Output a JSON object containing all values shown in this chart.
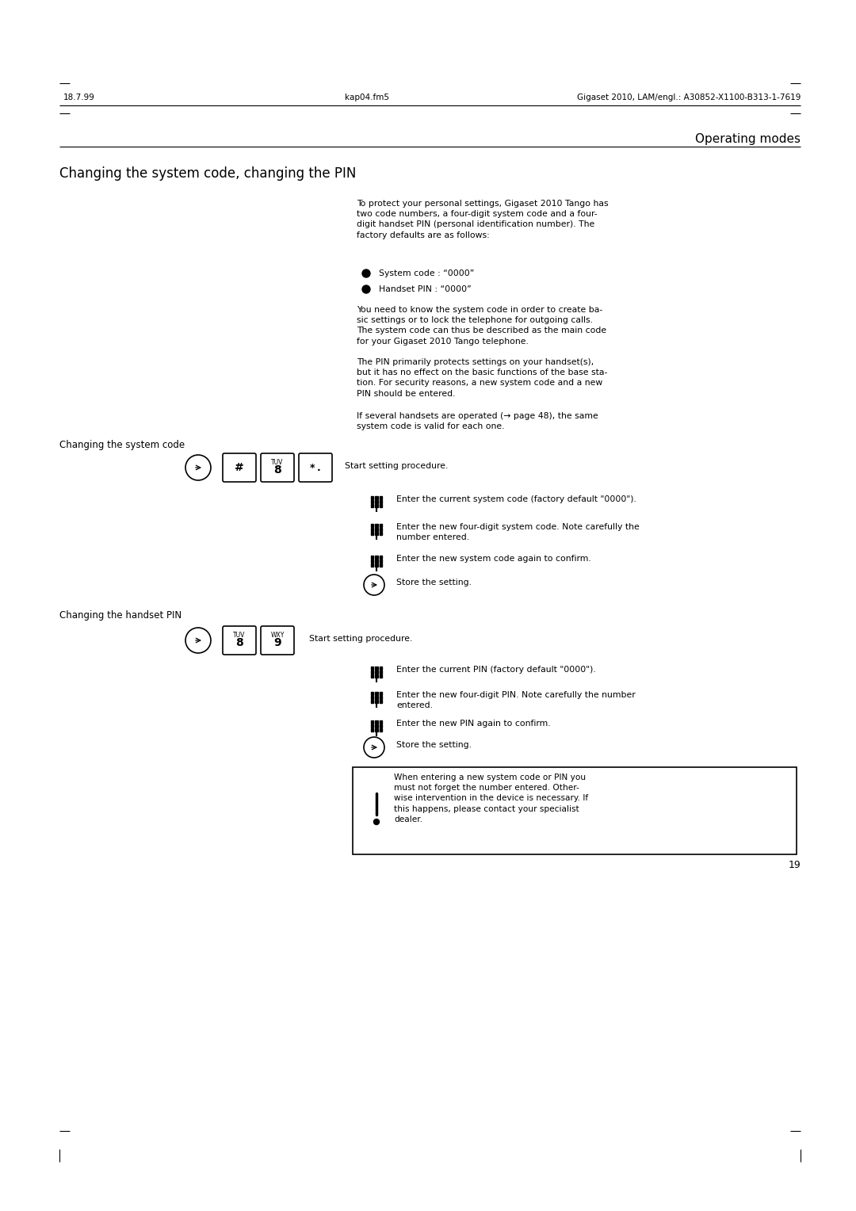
{
  "page_width": 10.8,
  "page_height": 15.28,
  "dpi": 100,
  "bg_color": "#ffffff",
  "header_left": "18.7.99",
  "header_center": "kap04.fm5",
  "header_right": "Gigaset 2010, LAM/engl.: A30852-X1100-B313-1-7619",
  "section_title": "Operating modes",
  "page_number": "19",
  "main_heading": "Changing the system code, changing the PIN",
  "intro_para1": "To protect your personal settings, Gigaset 2010 Tango has\ntwo code numbers, a four-digit system code and a four-\ndigit handset PIN (personal identification number). The\nfactory defaults are as follows:",
  "bullet1": "System code : “0000”",
  "bullet2": "Handset PIN : “0000”",
  "intro_para2": "You need to know the system code in order to create ba-\nsic settings or to lock the telephone for outgoing calls.\nThe system code can thus be described as the main code\nfor your Gigaset 2010 Tango telephone.",
  "intro_para3": "The PIN primarily protects settings on your handset(s),\nbut it has no effect on the basic functions of the base sta-\ntion. For security reasons, a new system code and a new\nPIN should be entered.",
  "intro_para4": "If several handsets are operated (→ page 48), the same\nsystem code is valid for each one.",
  "subsection1": "Changing the system code",
  "step1_label": "Start setting procedure.",
  "keypad_icon_label1": "Enter the current system code (factory default \"0000\").",
  "keypad_icon_label2": "Enter the new four-digit system code. Note carefully the\nnumber entered.",
  "keypad_icon_label3": "Enter the new system code again to confirm.",
  "circle_icon_label": "Store the setting.",
  "subsection2": "Changing the handset PIN",
  "step2_label": "Start setting procedure.",
  "keypad_icon_label4": "Enter the current PIN (factory default \"0000\").",
  "keypad_icon_label5": "Enter the new four-digit PIN. Note carefully the number\nentered.",
  "keypad_icon_label6": "Enter the new PIN again to confirm.",
  "circle_icon_label2": "Store the setting.",
  "warning_text": "When entering a new system code or PIN you\nmust not forget the number entered. Other-\nwise intervention in the device is necessary. If\nthis happens, please contact your specialist\ndealer.",
  "font_color": "#000000"
}
